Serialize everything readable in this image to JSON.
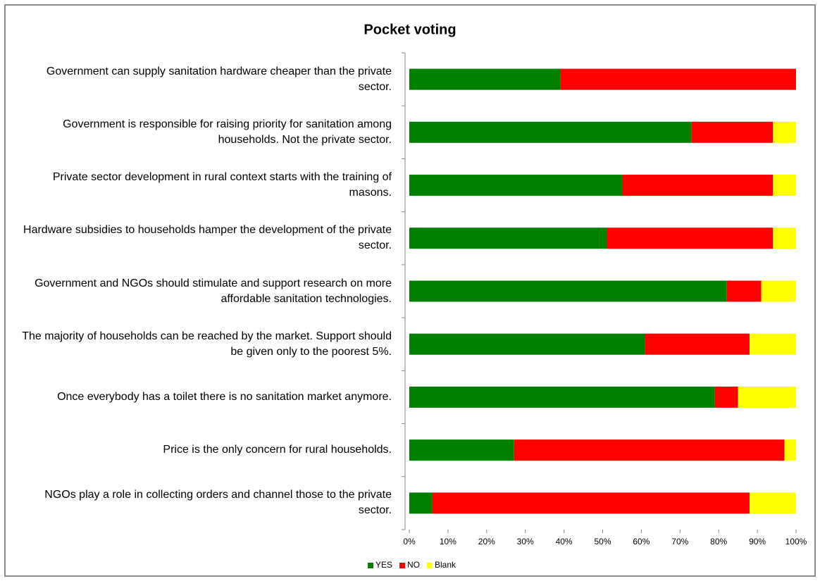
{
  "chart_data": {
    "type": "bar",
    "orientation": "horizontal",
    "stacked": true,
    "title": "Pocket voting",
    "categories": [
      "Government can supply sanitation hardware cheaper than the private sector.",
      "Government is responsible for raising priority for sanitation among households. Not the private sector.",
      "Private sector development in rural context starts with the training of masons.",
      "Hardware subsidies to households hamper the development of the private sector.",
      "Government and NGOs should stimulate and support research on more affordable sanitation technologies.",
      "The majority of households can be reached by the market. Support should be given only to the poorest 5%.",
      "Once everybody has a toilet there is no sanitation market anymore.",
      "Price is the only concern for rural households.",
      "NGOs play a role in collecting orders and channel those to the private sector."
    ],
    "series": [
      {
        "name": "YES",
        "color": "#008000",
        "values": [
          39,
          73,
          55,
          51,
          82,
          61,
          79,
          27,
          6
        ]
      },
      {
        "name": "NO",
        "color": "#ff0000",
        "values": [
          61,
          21,
          39,
          43,
          9,
          27,
          6,
          70,
          82
        ]
      },
      {
        "name": "Blank",
        "color": "#ffff00",
        "values": [
          0,
          6,
          6,
          6,
          9,
          12,
          15,
          3,
          12
        ]
      }
    ],
    "xlim": [
      0,
      100
    ],
    "xticks": [
      {
        "value": 0,
        "label": "0%"
      },
      {
        "value": 10,
        "label": "10%"
      },
      {
        "value": 20,
        "label": "20%"
      },
      {
        "value": 30,
        "label": "30%"
      },
      {
        "value": 40,
        "label": "40%"
      },
      {
        "value": 50,
        "label": "50%"
      },
      {
        "value": 60,
        "label": "60%"
      },
      {
        "value": 70,
        "label": "70%"
      },
      {
        "value": 80,
        "label": "80%"
      },
      {
        "value": 90,
        "label": "90%"
      },
      {
        "value": 100,
        "label": "100%"
      }
    ],
    "grid": false,
    "legend": "bottom"
  }
}
